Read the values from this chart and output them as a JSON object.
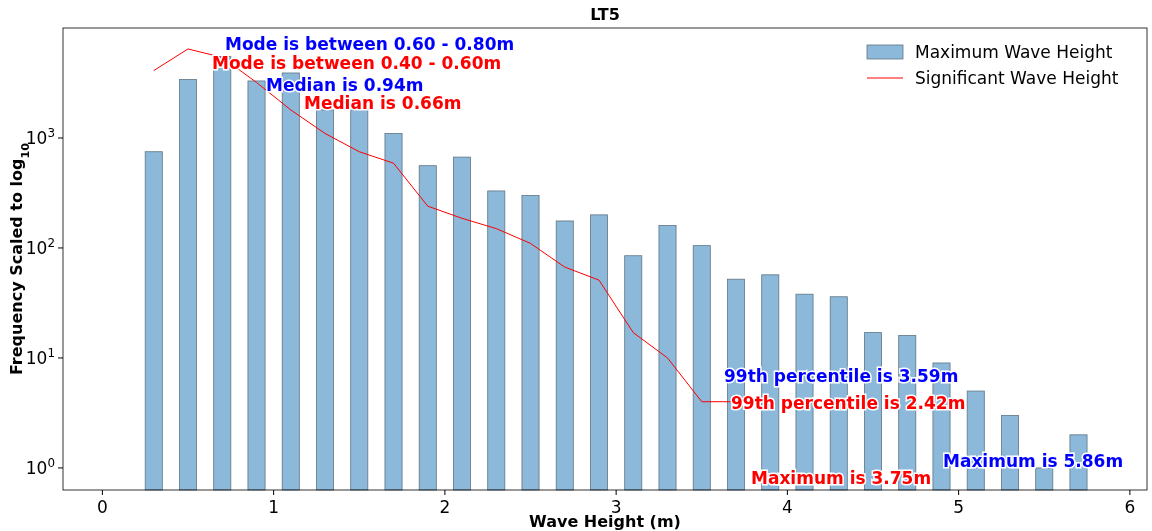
{
  "chart_data": {
    "type": "histogram",
    "title": "LT5",
    "xlabel": "Wave Height (m)",
    "ylabel": "Frequency Scaled to log$_{10}$",
    "bins": [
      0.2,
      0.4,
      0.6,
      0.8,
      1.0,
      1.2,
      1.4,
      1.6,
      1.8,
      2.0,
      2.2,
      2.4,
      2.6,
      2.8,
      3.0,
      3.2,
      3.4,
      3.6,
      3.8,
      4.0,
      4.2,
      4.4,
      4.6,
      4.8,
      5.0,
      5.2,
      5.4,
      5.6,
      5.8
    ],
    "series": [
      {
        "name": "Maximum Wave Height",
        "color": "#8cb8d9",
        "values": [
          750,
          3400,
          5500,
          3300,
          3900,
          1800,
          1800,
          1100,
          560,
          670,
          330,
          300,
          176,
          200,
          85,
          160,
          105,
          52,
          57,
          38,
          36,
          17,
          16,
          9,
          5,
          3,
          1,
          2
        ]
      },
      {
        "name": "Significant Wave Height",
        "type": "line",
        "color": "#ff0000",
        "x": [
          0.3,
          0.5,
          0.7,
          0.9,
          1.1,
          1.3,
          1.5,
          1.7,
          1.9,
          2.1,
          2.3,
          2.5,
          2.7,
          2.9,
          3.1,
          3.3,
          3.5,
          3.7
        ],
        "values": [
          4100,
          6450,
          5400,
          3200,
          1800,
          1100,
          750,
          590,
          240,
          186,
          150,
          110,
          67,
          51,
          17,
          10,
          4,
          4
        ]
      }
    ],
    "log": "y",
    "xlim": [
      -0.23,
      6.1
    ],
    "ylim": [
      0.63,
      10000
    ],
    "xticks": [
      0,
      1,
      2,
      3,
      4,
      5,
      6
    ],
    "yticks": [
      {
        "value": 1,
        "label": "10$^{0}$"
      },
      {
        "value": 10,
        "label": "10$^{1}$"
      },
      {
        "value": 100,
        "label": "10$^{2}$"
      },
      {
        "value": 1000,
        "label": "10$^{3}$"
      }
    ],
    "grid": false,
    "legend": "top right",
    "annotations": [
      "Mode is between 0.60 - 0.80m",
      "Mode is between 0.40 - 0.60m",
      "Median is 0.94m",
      "Median is 0.66m",
      "99th percentile is 3.59m",
      "99th percentile is 2.42m",
      "Maximum is 5.86m",
      "Maximum is 3.75m"
    ]
  }
}
